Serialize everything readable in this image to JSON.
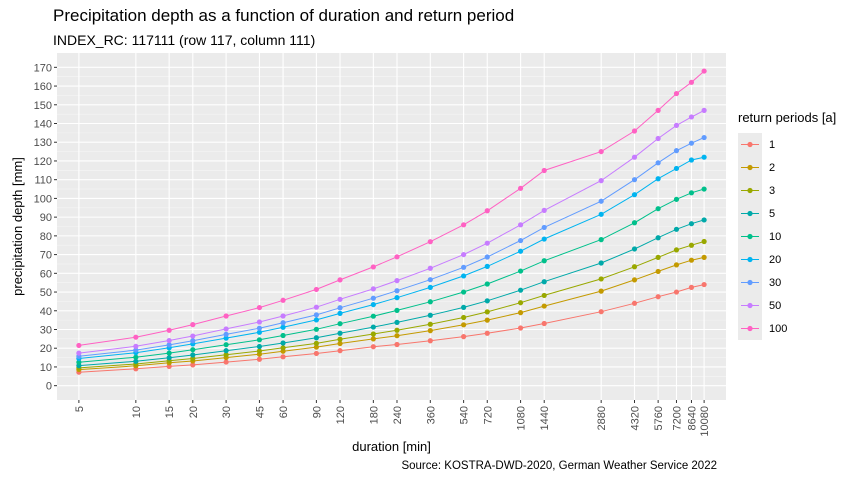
{
  "title": "Precipitation depth as a function of duration and return period",
  "subtitle": "INDEX_RC: 117111 (row 117, column 111)",
  "caption": "Source: KOSTRA-DWD-2020, German Weather Service 2022",
  "legend_title": "return periods [a]",
  "colors": {
    "panel_bg": "#ebebeb",
    "grid_major": "#ffffff",
    "grid_minor": "#f5f5f5"
  },
  "chart_data": {
    "type": "line",
    "title": "Precipitation depth as a function of duration and return period",
    "xlabel": "duration [min]",
    "ylabel": "precipitation depth [mm]",
    "x_scale": "log",
    "x": [
      5,
      10,
      15,
      20,
      30,
      45,
      60,
      90,
      120,
      180,
      240,
      360,
      540,
      720,
      1080,
      1440,
      2880,
      4320,
      5760,
      7200,
      8640,
      10080
    ],
    "x_tick_labels": [
      "5",
      "10",
      "15",
      "20",
      "30",
      "45",
      "60",
      "90",
      "120",
      "180",
      "240",
      "360",
      "540",
      "720",
      "1080",
      "1440",
      "2880",
      "4320",
      "5760",
      "7200",
      "8640",
      "10080"
    ],
    "ylim": [
      0,
      170
    ],
    "y_ticks": [
      0,
      10,
      20,
      30,
      40,
      50,
      60,
      70,
      80,
      90,
      100,
      110,
      120,
      130,
      140,
      150,
      160,
      170
    ],
    "legend_position": "right",
    "grid": true,
    "series": [
      {
        "name": "1",
        "color": "#F8766D",
        "values": [
          7.2,
          9.0,
          10.3,
          11.1,
          12.6,
          14.1,
          15.4,
          17.2,
          18.7,
          20.8,
          22.0,
          24.0,
          26.2,
          28.0,
          30.8,
          33.2,
          39.5,
          44.0,
          47.5,
          50.0,
          52.5,
          54.0
        ]
      },
      {
        "name": "2",
        "color": "#C49A00",
        "values": [
          8.6,
          10.6,
          12.2,
          13.2,
          15.0,
          16.8,
          18.4,
          20.6,
          22.5,
          25.0,
          26.7,
          29.4,
          32.5,
          35.0,
          39.0,
          42.5,
          50.5,
          56.5,
          61.0,
          64.5,
          67.0,
          68.5
        ]
      },
      {
        "name": "3",
        "color": "#99A800",
        "values": [
          9.5,
          11.6,
          13.3,
          14.5,
          16.5,
          18.5,
          20.2,
          22.6,
          24.8,
          27.6,
          29.6,
          32.8,
          36.4,
          39.4,
          44.3,
          48.2,
          57.0,
          63.5,
          68.5,
          72.5,
          75.0,
          77.0
        ]
      },
      {
        "name": "5",
        "color": "#00A9A9",
        "values": [
          10.7,
          13.0,
          14.9,
          16.4,
          18.7,
          20.9,
          22.8,
          25.6,
          28.0,
          31.3,
          33.8,
          37.6,
          41.8,
          45.3,
          51.0,
          55.5,
          65.5,
          73.0,
          79.0,
          83.5,
          86.5,
          88.5
        ]
      },
      {
        "name": "10",
        "color": "#00C08B",
        "values": [
          12.5,
          15.2,
          17.4,
          19.2,
          21.9,
          24.5,
          26.8,
          30.1,
          33.1,
          37.1,
          40.2,
          44.8,
          50.0,
          54.3,
          61.2,
          66.7,
          78.0,
          87.0,
          94.5,
          99.5,
          103.0,
          105.0
        ]
      },
      {
        "name": "20",
        "color": "#00B4F0",
        "values": [
          14.5,
          17.6,
          20.2,
          22.3,
          25.4,
          28.5,
          31.2,
          35.1,
          38.6,
          43.3,
          47.0,
          52.5,
          58.6,
          63.7,
          71.8,
          78.3,
          91.5,
          102.0,
          110.5,
          116.0,
          120.5,
          122.0
        ]
      },
      {
        "name": "30",
        "color": "#619CFF",
        "values": [
          15.7,
          19.0,
          21.8,
          24.0,
          27.4,
          30.7,
          33.6,
          37.8,
          41.6,
          46.7,
          50.7,
          56.6,
          63.2,
          68.7,
          77.5,
          84.5,
          98.5,
          110.0,
          119.0,
          125.5,
          129.5,
          132.5
        ]
      },
      {
        "name": "50",
        "color": "#C77CFF",
        "values": [
          17.4,
          21.0,
          24.1,
          26.5,
          30.3,
          34.0,
          37.2,
          41.9,
          46.1,
          51.7,
          56.1,
          62.7,
          70.0,
          76.1,
          85.9,
          93.6,
          109.5,
          122.0,
          132.0,
          139.0,
          143.5,
          147.0
        ]
      },
      {
        "name": "100",
        "color": "#FF61C3",
        "values": [
          21.5,
          25.9,
          29.6,
          32.6,
          37.2,
          41.7,
          45.6,
          51.4,
          56.5,
          63.4,
          68.8,
          76.9,
          85.9,
          93.4,
          105.4,
          114.9,
          125.0,
          136.0,
          147.0,
          156.0,
          162.0,
          168.0
        ]
      }
    ]
  }
}
